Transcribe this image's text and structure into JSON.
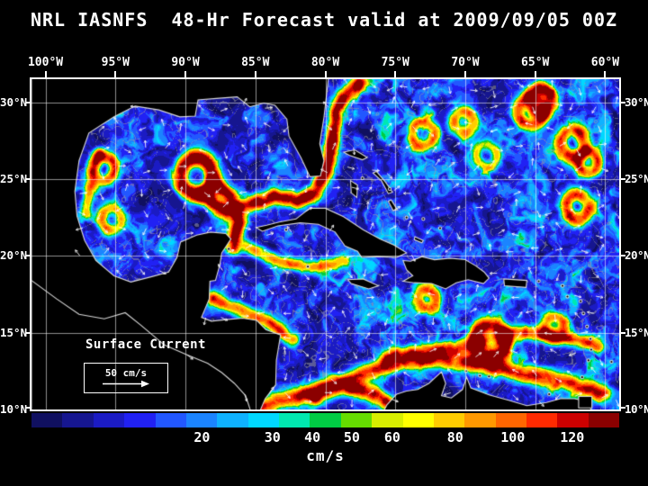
{
  "title": "NRL IASNFS  48-Hr Forecast valid at 2009/09/05 00Z",
  "map": {
    "legend_label": "Surface Current",
    "scale_label": "50 cm/s",
    "lon_min": -101,
    "lon_max": -59,
    "lat_min": 10,
    "lat_max": 31.5,
    "lon_ticks": [
      {
        "label": "100°W",
        "lon": -100
      },
      {
        "label": "95°W",
        "lon": -95
      },
      {
        "label": "90°W",
        "lon": -90
      },
      {
        "label": "85°W",
        "lon": -85
      },
      {
        "label": "80°W",
        "lon": -80
      },
      {
        "label": "75°W",
        "lon": -75
      },
      {
        "label": "70°W",
        "lon": -70
      },
      {
        "label": "65°W",
        "lon": -65
      },
      {
        "label": "60°W",
        "lon": -60
      }
    ],
    "lat_ticks": [
      {
        "label": "30°N",
        "lat": 30
      },
      {
        "label": "25°N",
        "lat": 25
      },
      {
        "label": "20°N",
        "lat": 20
      },
      {
        "label": "15°N",
        "lat": 15
      },
      {
        "label": "10°N",
        "lat": 10
      }
    ],
    "grid_color": "#ffffff",
    "land_color": "#000000",
    "coast_color": "#d8d8d8",
    "background_color": "#000000"
  },
  "colorbar": {
    "unit": "cm/s",
    "ticks": [
      {
        "label": "20",
        "pos": 0.29
      },
      {
        "label": "30",
        "pos": 0.41
      },
      {
        "label": "40",
        "pos": 0.478
      },
      {
        "label": "50",
        "pos": 0.545
      },
      {
        "label": "60",
        "pos": 0.614
      },
      {
        "label": "80",
        "pos": 0.721
      },
      {
        "label": "100",
        "pos": 0.819
      },
      {
        "label": "120",
        "pos": 0.92
      }
    ],
    "colors": [
      "#101060",
      "#161690",
      "#1b1bc4",
      "#2121f4",
      "#2257ff",
      "#1b84ff",
      "#0fb2ff",
      "#00d8ff",
      "#00e8b0",
      "#00cc44",
      "#66dd00",
      "#d8ee00",
      "#ffff00",
      "#ffcc00",
      "#ff9900",
      "#ff6600",
      "#ff2a00",
      "#cc0000",
      "#8b0000"
    ]
  }
}
